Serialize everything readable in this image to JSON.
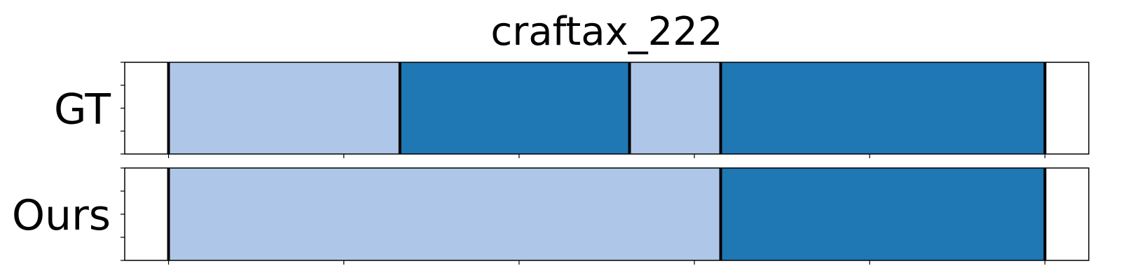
{
  "chart_data": {
    "type": "timeline_segments",
    "title": "craftax_222",
    "x_range": [
      -0.25,
      5.25
    ],
    "x_ticks": [
      0,
      1,
      2,
      3,
      4,
      5
    ],
    "y_ticks_per_row": 5,
    "colors": {
      "light": "#aec7e8",
      "dark": "#1f77b4",
      "boundary": "#000000",
      "frame": "#000000"
    },
    "rows": [
      {
        "label": "GT",
        "segments": [
          {
            "start": 0.0,
            "end": 1.32,
            "color": "light"
          },
          {
            "start": 1.32,
            "end": 2.63,
            "color": "dark"
          },
          {
            "start": 2.63,
            "end": 3.15,
            "color": "light"
          },
          {
            "start": 3.15,
            "end": 5.0,
            "color": "dark"
          }
        ],
        "boundaries": [
          0.0,
          1.32,
          2.63,
          3.15,
          5.0
        ]
      },
      {
        "label": "Ours",
        "segments": [
          {
            "start": 0.0,
            "end": 3.15,
            "color": "light"
          },
          {
            "start": 3.15,
            "end": 5.0,
            "color": "dark"
          }
        ],
        "boundaries": [
          0.0,
          3.15,
          5.0
        ]
      }
    ]
  }
}
